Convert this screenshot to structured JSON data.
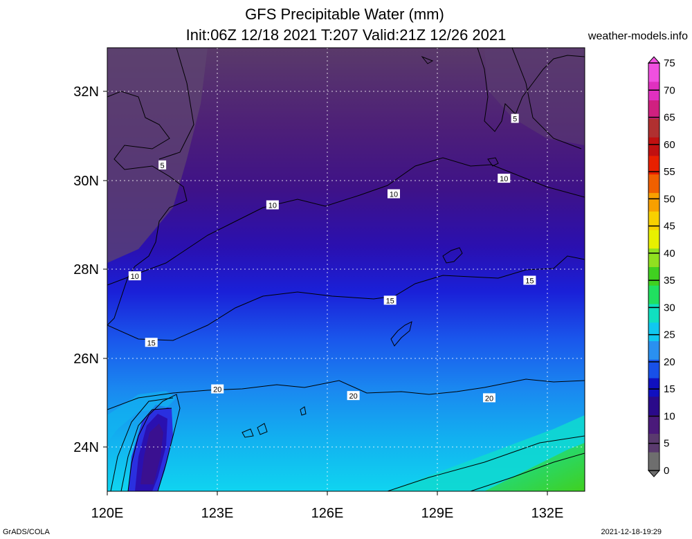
{
  "title": {
    "line1": "GFS Precipitable Water (mm)",
    "line2": "Init:06Z 12/18 2021 T:207 Valid:21Z 12/26 2021"
  },
  "site": "weather-models.info",
  "footer": {
    "left": "GrADS/COLA",
    "right": "2021-12-18-19:29"
  },
  "map": {
    "lon_range": [
      120,
      133
    ],
    "lat_range": [
      23,
      33
    ],
    "lon_ticks": [
      "120E",
      "123E",
      "126E",
      "129E",
      "132E"
    ],
    "lat_ticks": [
      "32N",
      "30N",
      "28N",
      "26N",
      "24N"
    ],
    "contour_labels": [
      {
        "text": "5",
        "lon": 121.5,
        "lat": 30.35
      },
      {
        "text": "5",
        "lon": 131.1,
        "lat": 31.4
      },
      {
        "text": "10",
        "lon": 120.75,
        "lat": 27.85
      },
      {
        "text": "10",
        "lon": 124.5,
        "lat": 29.45
      },
      {
        "text": "10",
        "lon": 127.8,
        "lat": 29.7
      },
      {
        "text": "10",
        "lon": 130.8,
        "lat": 30.05
      },
      {
        "text": "15",
        "lon": 121.2,
        "lat": 26.35
      },
      {
        "text": "15",
        "lon": 127.7,
        "lat": 27.3
      },
      {
        "text": "15",
        "lon": 131.5,
        "lat": 27.75
      },
      {
        "text": "20",
        "lon": 123.0,
        "lat": 25.3
      },
      {
        "text": "20",
        "lon": 126.7,
        "lat": 25.15
      },
      {
        "text": "20",
        "lon": 130.4,
        "lat": 25.1
      }
    ]
  },
  "colorbar": {
    "levels": [
      "0",
      "5",
      "10",
      "15",
      "20",
      "25",
      "30",
      "35",
      "40",
      "45",
      "50",
      "55",
      "60",
      "65",
      "70",
      "75"
    ],
    "colors": [
      "#6e6e6e",
      "#5a3a6e",
      "#4a1a7a",
      "#2a0a8a",
      "#1010c0",
      "#1850e8",
      "#2a90f0",
      "#10c8f0",
      "#10e0c0",
      "#20e060",
      "#40d020",
      "#90e020",
      "#e8f000",
      "#f8d000",
      "#f8a000",
      "#f06000",
      "#e82000",
      "#c01010",
      "#b03030",
      "#d02080",
      "#e030c0",
      "#f050e0"
    ]
  }
}
